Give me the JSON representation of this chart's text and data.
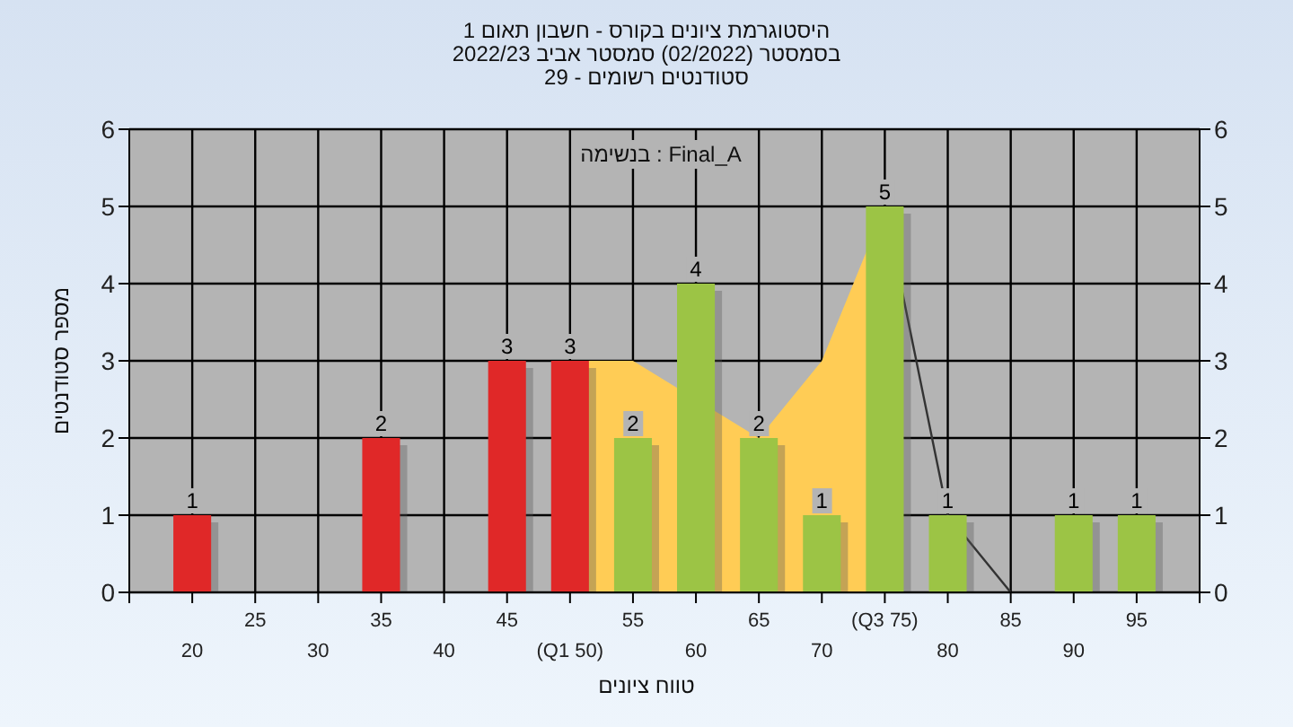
{
  "chart_data": {
    "type": "bar",
    "title": "היסטוגרמת ציונים בקורס - חשבון תאום 1",
    "subtitle": "בסמסטר (02/2022) סמסטר אביב 2022/23\nסטודנטים רשומים - 29",
    "xlabel": "טווח ציונים",
    "ylabel": "מספר סטודנטים",
    "annotations": [
      "בנשימה : Final_A"
    ],
    "categories": [
      "20",
      "25",
      "30",
      "35",
      "40",
      "45",
      "(Q1 50)",
      "55",
      "60",
      "65",
      "70",
      "(Q3 75)",
      "80",
      "85",
      "90",
      "95"
    ],
    "series": [
      {
        "type": "area",
        "color": "#ffcc55",
        "values": [
          null,
          null,
          null,
          null,
          null,
          null,
          3,
          3,
          null,
          2,
          3,
          5,
          null,
          null,
          null,
          null
        ]
      },
      {
        "type": "line",
        "color": "#333333",
        "values": [
          null,
          null,
          null,
          null,
          null,
          null,
          null,
          null,
          null,
          null,
          null,
          5,
          1,
          0,
          null,
          null
        ]
      },
      {
        "colors": [
          "#e02828",
          "#e02828",
          "#e02828",
          "#e02828",
          "#e02828",
          "#e02828",
          "#e02828",
          "#9cc445",
          "#9cc445",
          "#9cc445",
          "#9cc445",
          "#9cc445",
          "#9cc445",
          "#9cc445",
          "#9cc445",
          "#9cc445"
        ],
        "values": [
          1,
          0,
          0,
          2,
          0,
          3,
          3,
          2,
          4,
          2,
          1,
          5,
          1,
          0,
          1,
          1
        ],
        "value_labels": [
          "1",
          null,
          null,
          "2",
          null,
          "3",
          "3",
          "2",
          "4",
          "2",
          "1",
          "5",
          "1",
          null,
          "1",
          "1"
        ]
      }
    ],
    "ylim": [
      0,
      6
    ],
    "yticks": [
      0,
      1,
      2,
      3,
      4,
      5,
      6
    ],
    "y2lim": [
      0,
      6
    ],
    "y2ticks": [
      0,
      1,
      2,
      3,
      4,
      5,
      6
    ],
    "grid": true
  }
}
